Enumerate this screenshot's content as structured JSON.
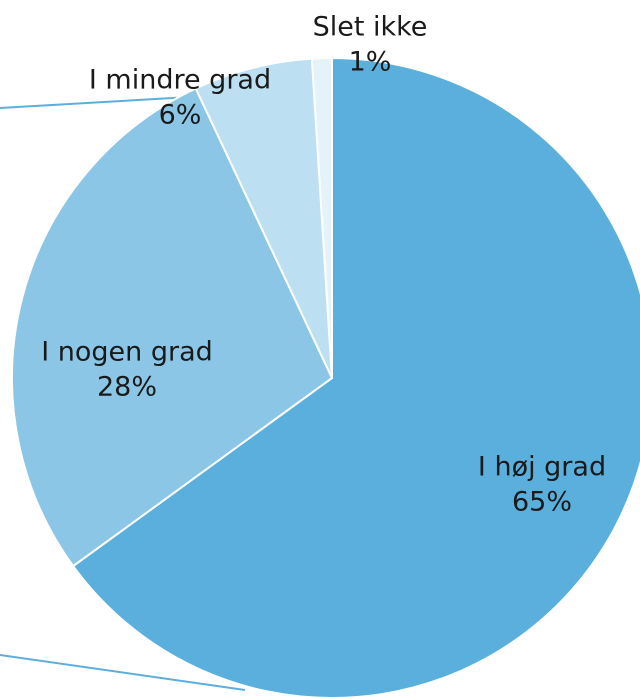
{
  "chart_data": {
    "type": "pie",
    "categories": [
      "I høj grad",
      "I nogen grad",
      "I mindre grad",
      "Slet ikke"
    ],
    "values": [
      65,
      28,
      6,
      1
    ],
    "value_labels": [
      "65%",
      "28%",
      "6%",
      "1%"
    ],
    "colors": [
      "#5aafdc",
      "#8cc6e7",
      "#bcdff1",
      "#e4f2fa"
    ]
  }
}
